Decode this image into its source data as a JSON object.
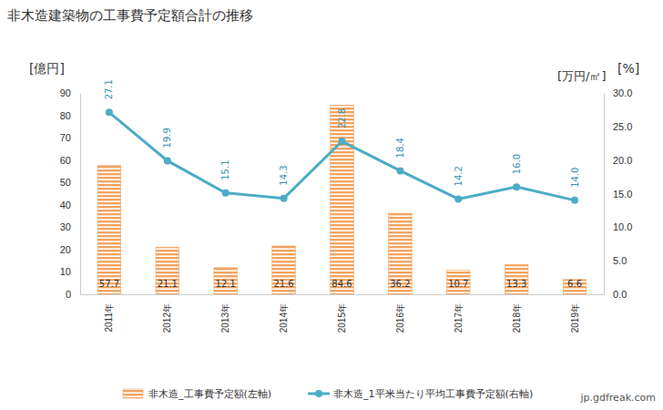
{
  "chart_data": {
    "type": "bar",
    "title": "非木造建築物の工事費予定額合計の推移",
    "y_label": "[億円]",
    "y2_label": "[万円/㎡]",
    "annotations": [
      "[%]",
      "jp.gdfreak.com"
    ],
    "categories": [
      "2011年",
      "2012年",
      "2013年",
      "2014年",
      "2015年",
      "2016年",
      "2017年",
      "2018年",
      "2019年"
    ],
    "series": [
      {
        "name": "非木造_工事費予定額(左軸)",
        "type": "bar",
        "color": "#f4a460",
        "values": [
          57.7,
          21.1,
          12.1,
          21.6,
          84.6,
          36.2,
          10.7,
          13.3,
          6.6
        ]
      },
      {
        "name": "非木造_1平米当たり平均工事費予定額(右軸)",
        "type": "line",
        "color": "#4bacc6",
        "marker": "circle",
        "axis": "y2",
        "values": [
          27.1,
          19.9,
          15.1,
          14.3,
          22.8,
          18.4,
          14.2,
          16.0,
          14.0
        ],
        "value_labels": [
          "27.1",
          "19.9",
          "15.1",
          "14.3",
          "22.8",
          "18.4",
          "14.2",
          "16.0",
          "14.0"
        ]
      }
    ],
    "ylim": [
      0,
      90
    ],
    "yticks": [
      0,
      10,
      20,
      30,
      40,
      50,
      60,
      70,
      80,
      90
    ],
    "y2lim": [
      0,
      30
    ],
    "y2ticks": [
      {
        "value": 0,
        "label": "0.0"
      },
      {
        "value": 5,
        "label": "5.0"
      },
      {
        "value": 10,
        "label": "10.0"
      },
      {
        "value": 15,
        "label": "15.0"
      },
      {
        "value": 20,
        "label": "20.0"
      },
      {
        "value": 25,
        "label": "25.0"
      },
      {
        "value": 30,
        "label": "30.0"
      }
    ],
    "grid": false,
    "data_labels": true,
    "legend": "bottom"
  }
}
